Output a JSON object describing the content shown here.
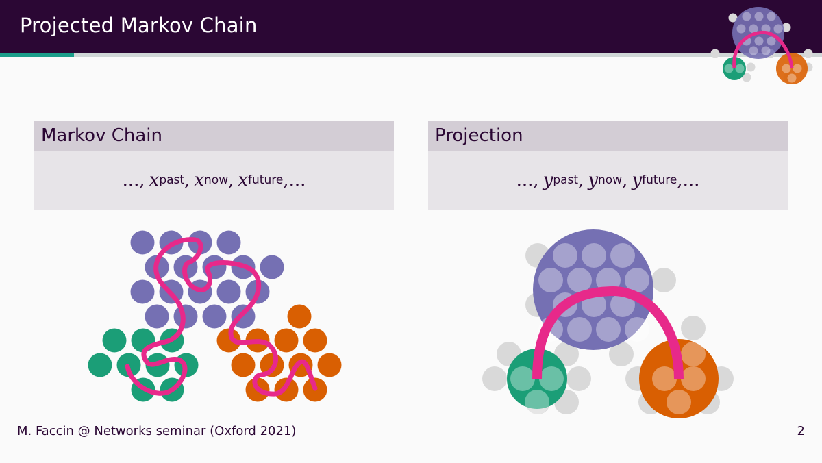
{
  "header": {
    "title": "Projected Markov Chain",
    "progress_fraction": 0.09
  },
  "blocks": [
    {
      "heading": "Markov Chain",
      "variable": "x",
      "leading": "...,",
      "terms": [
        "past",
        "now",
        "future"
      ],
      "trailing": ",..."
    },
    {
      "heading": "Projection",
      "variable": "y",
      "leading": "...,",
      "terms": [
        "past",
        "now",
        "future"
      ],
      "trailing": ",..."
    }
  ],
  "footer": {
    "text": "M. Faccin @ Networks seminar (Oxford 2021)",
    "page_number": "2"
  },
  "colors": {
    "title_bar": "#2b0734",
    "progress_fill": "#1b9e8a",
    "purple_state": "#7570b3",
    "green_state": "#1b9e77",
    "orange_state": "#d95f02",
    "trajectory": "#e7298a",
    "ghost_state": "#d9d9d9"
  }
}
